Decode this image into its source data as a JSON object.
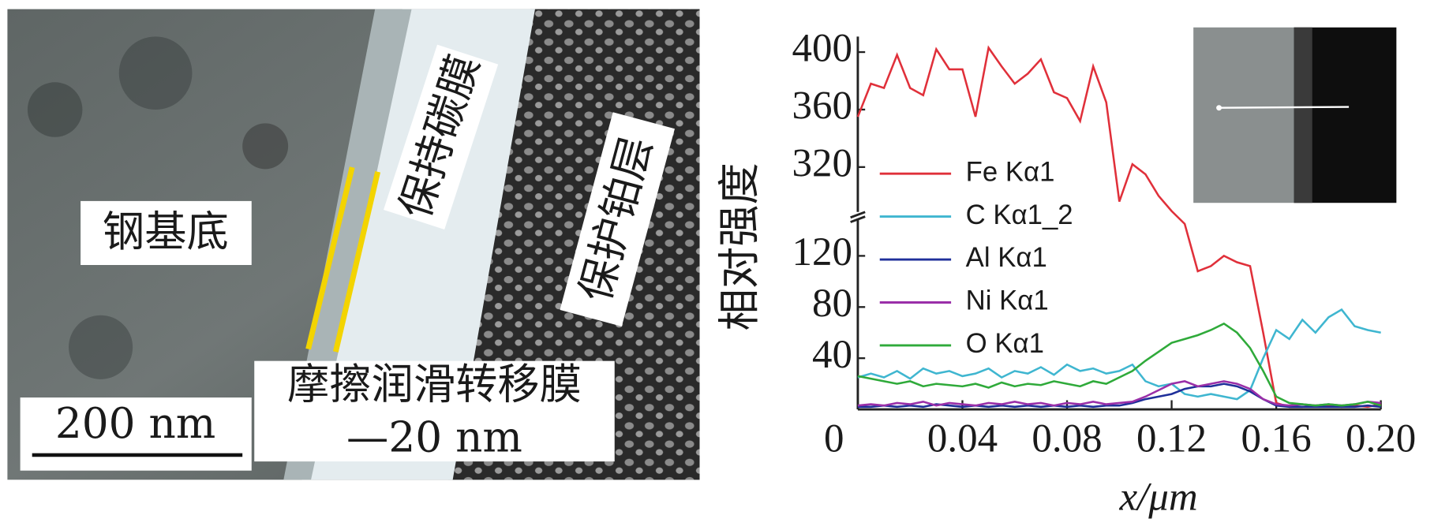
{
  "figure": {
    "substrate_label": "钢基底",
    "carbon_label": "保持碳膜",
    "pt_label": "保护铂层",
    "film_label": "摩擦润滑转移膜",
    "film_thickness": "—20 nm",
    "scale_bar": "200 nm"
  },
  "chart_data": {
    "type": "line",
    "x_label": "x/μm",
    "y_label": "相对强度",
    "x": [
      0,
      0.005,
      0.01,
      0.015,
      0.02,
      0.025,
      0.03,
      0.035,
      0.04,
      0.045,
      0.05,
      0.055,
      0.06,
      0.065,
      0.07,
      0.075,
      0.08,
      0.085,
      0.09,
      0.095,
      0.1,
      0.105,
      0.11,
      0.115,
      0.12,
      0.125,
      0.13,
      0.135,
      0.14,
      0.145,
      0.15,
      0.155,
      0.16,
      0.165,
      0.17,
      0.175,
      0.18,
      0.185,
      0.19,
      0.195,
      0.2
    ],
    "series": [
      {
        "name": "Fe Kα1",
        "color": "#e0303a",
        "values": [
          355,
          378,
          375,
          398,
          375,
          370,
          402,
          388,
          388,
          355,
          403,
          390,
          378,
          385,
          395,
          372,
          368,
          352,
          390,
          365,
          296,
          322,
          315,
          300,
          280,
          145,
          108,
          112,
          120,
          115,
          112,
          60,
          5,
          2,
          2,
          3,
          3,
          2,
          3,
          2,
          4
        ]
      },
      {
        "name": "C Kα1_2",
        "color": "#3fb6d0",
        "values": [
          25,
          28,
          25,
          30,
          24,
          32,
          28,
          30,
          26,
          28,
          32,
          25,
          30,
          28,
          33,
          27,
          35,
          30,
          32,
          28,
          30,
          35,
          22,
          18,
          20,
          12,
          10,
          12,
          10,
          8,
          15,
          40,
          62,
          55,
          70,
          60,
          72,
          78,
          65,
          62,
          60
        ]
      },
      {
        "name": "Al Kα1",
        "color": "#1f2f9a",
        "values": [
          2,
          2,
          3,
          2,
          3,
          2,
          4,
          3,
          2,
          3,
          2,
          3,
          2,
          3,
          2,
          3,
          2,
          3,
          2,
          3,
          3,
          5,
          8,
          10,
          12,
          16,
          18,
          18,
          20,
          18,
          14,
          8,
          3,
          2,
          2,
          2,
          2,
          2,
          2,
          3,
          2
        ]
      },
      {
        "name": "Ni Kα1",
        "color": "#9a2fa8",
        "values": [
          3,
          4,
          3,
          5,
          4,
          6,
          3,
          5,
          4,
          3,
          5,
          4,
          6,
          4,
          5,
          3,
          5,
          4,
          6,
          4,
          5,
          6,
          10,
          15,
          20,
          22,
          18,
          20,
          22,
          20,
          16,
          8,
          4,
          3,
          4,
          3,
          4,
          3,
          4,
          6,
          5
        ]
      },
      {
        "name": "O Kα1",
        "color": "#2faa3a",
        "values": [
          26,
          24,
          22,
          20,
          22,
          18,
          20,
          19,
          18,
          20,
          17,
          21,
          18,
          20,
          19,
          22,
          20,
          18,
          22,
          20,
          25,
          30,
          38,
          45,
          52,
          55,
          58,
          62,
          67,
          60,
          48,
          30,
          10,
          5,
          4,
          3,
          4,
          3,
          4,
          6,
          3
        ]
      }
    ],
    "xlim": [
      0,
      0.2
    ],
    "xticks": [
      0,
      0.04,
      0.08,
      0.12,
      0.16,
      {
        "value": 0.2,
        "label": "0.20"
      }
    ],
    "ylim": [
      0,
      400
    ],
    "y_break": [
      145,
      290
    ],
    "yticks": [
      40,
      80,
      120,
      320,
      360,
      400
    ],
    "grid": false,
    "legend": "center-left"
  }
}
